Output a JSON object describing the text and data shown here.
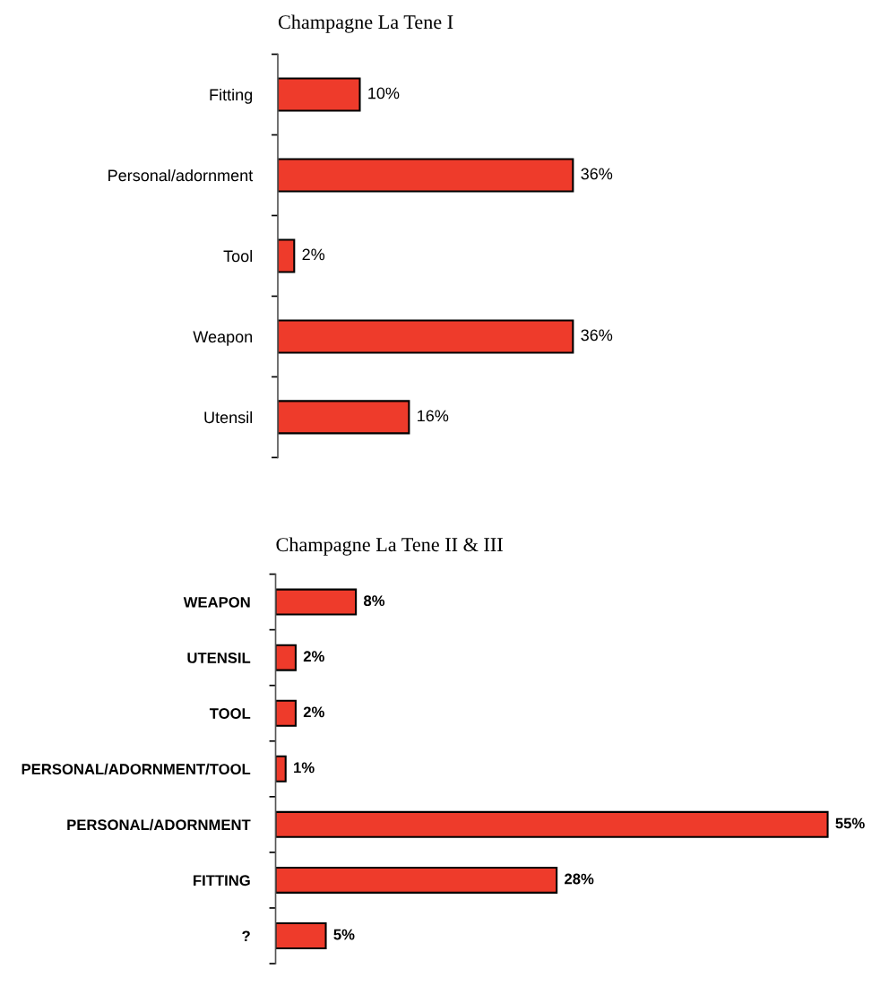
{
  "chart_data": [
    {
      "type": "bar",
      "orientation": "horizontal",
      "title": "Champagne La Tene I",
      "categories": [
        "Fitting",
        "Personal/adornment",
        "Tool",
        "Weapon",
        "Utensil"
      ],
      "values": [
        10,
        36,
        2,
        36,
        16
      ],
      "value_labels": [
        "10%",
        "36%",
        "2%",
        "36%",
        "16%"
      ],
      "color": "#ee3b2b",
      "grid": false,
      "legend": false
    },
    {
      "type": "bar",
      "orientation": "horizontal",
      "title": "Champagne La Tene II & III",
      "categories": [
        "WEAPON",
        "UTENSIL",
        "TOOL",
        "PERSONAL/ADORNMENT/TOOL",
        "PERSONAL/ADORNMENT",
        "FITTING",
        "?"
      ],
      "values": [
        8,
        2,
        2,
        1,
        55,
        28,
        5
      ],
      "value_labels": [
        "8%",
        "2%",
        "2%",
        "1%",
        "55%",
        "28%",
        "5%"
      ],
      "color": "#ee3b2b",
      "grid": false,
      "legend": false
    }
  ]
}
